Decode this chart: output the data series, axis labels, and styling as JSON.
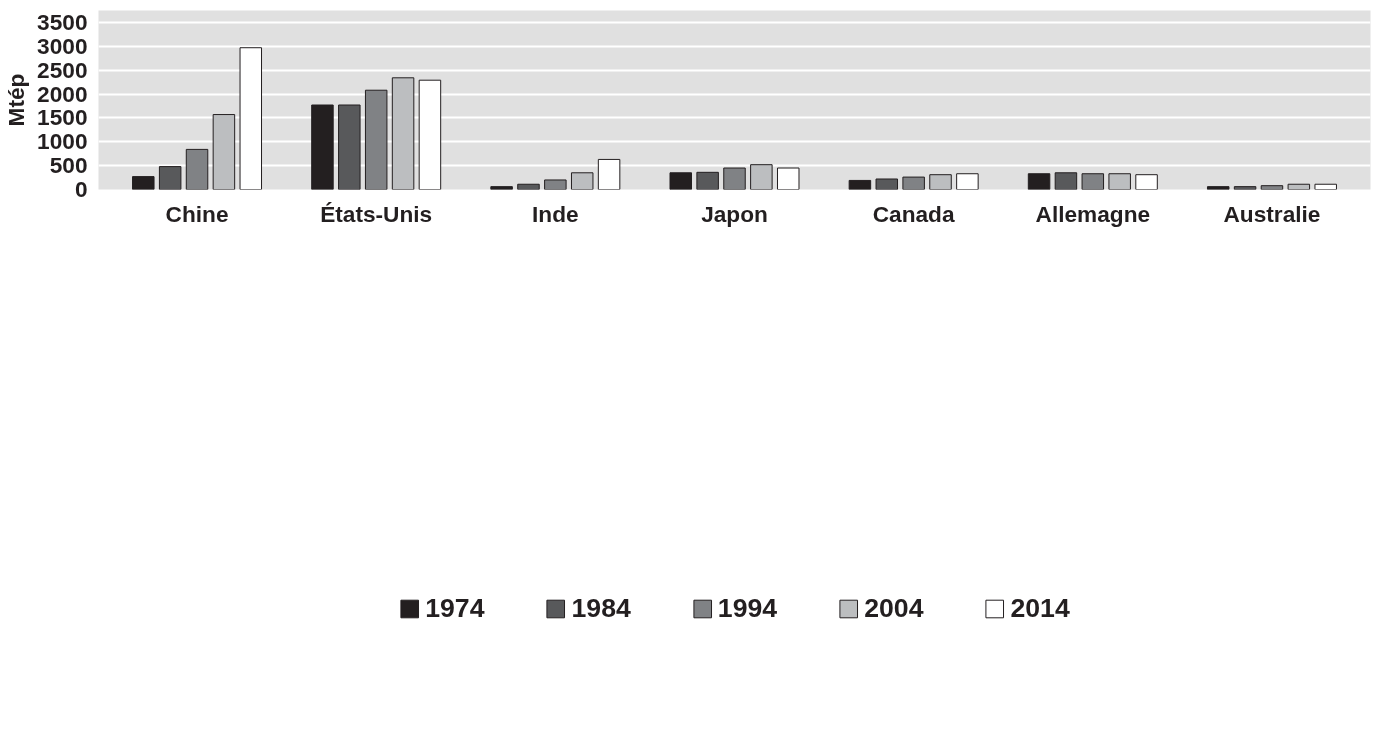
{
  "chart_data": {
    "type": "bar",
    "ylabel": "Mtép",
    "categories": [
      "Chine",
      "États-Unis",
      "Inde",
      "Japon",
      "Canada",
      "Allemagne",
      "Australie"
    ],
    "series": [
      {
        "name": "1974",
        "color": "#231f20",
        "values": [
          270,
          1770,
          60,
          350,
          190,
          330,
          60
        ]
      },
      {
        "name": "1984",
        "color": "#58595b",
        "values": [
          480,
          1770,
          110,
          360,
          220,
          350,
          60
        ]
      },
      {
        "name": "1994",
        "color": "#808285",
        "values": [
          840,
          2080,
          200,
          450,
          260,
          330,
          80
        ]
      },
      {
        "name": "2004",
        "color": "#bcbec0",
        "values": [
          1570,
          2340,
          350,
          520,
          310,
          330,
          110
        ]
      },
      {
        "name": "2014",
        "color": "#ffffff",
        "values": [
          2970,
          2290,
          630,
          450,
          330,
          310,
          110
        ]
      }
    ],
    "ylim": [
      0,
      3750
    ],
    "yticks": [
      0,
      500,
      1000,
      1500,
      2000,
      2500,
      3000,
      3500
    ],
    "grid": "y",
    "legend": "bottom"
  }
}
